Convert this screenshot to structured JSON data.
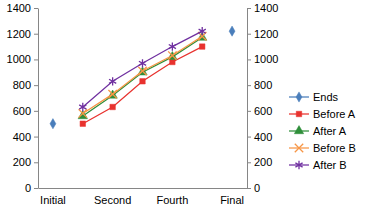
{
  "chart_data": {
    "type": "line",
    "categories": [
      "Initial",
      null,
      "Second",
      null,
      "Fourth",
      null,
      "Final"
    ],
    "ylim": [
      0,
      1400
    ],
    "yticks": [
      0,
      200,
      400,
      600,
      800,
      1000,
      1200,
      1400
    ],
    "y2lim": [
      0,
      1400
    ],
    "y2ticks": [
      0,
      200,
      400,
      600,
      800,
      1000,
      1200,
      1400
    ],
    "grid": false,
    "legend": "right",
    "series": [
      {
        "name": "Ends",
        "color": "#4a7ebb",
        "marker": "diamond",
        "line_style": "none",
        "axis": "y2",
        "values": [
          500,
          null,
          null,
          null,
          null,
          null,
          1220
        ]
      },
      {
        "name": "Before A",
        "color": "#e8322e",
        "marker": "square",
        "line_style": "solid",
        "values": [
          null,
          500,
          630,
          830,
          980,
          1100,
          null
        ]
      },
      {
        "name": "After A",
        "color": "#2f8f3a",
        "marker": "triangle",
        "line_style": "solid",
        "values": [
          null,
          560,
          720,
          900,
          1020,
          1170,
          null
        ]
      },
      {
        "name": "Before B",
        "color": "#f79646",
        "marker": "x",
        "line_style": "solid",
        "values": [
          null,
          580,
          730,
          910,
          1030,
          1180,
          null
        ]
      },
      {
        "name": "After B",
        "color": "#7030a0",
        "marker": "asterisk",
        "line_style": "solid",
        "values": [
          null,
          630,
          830,
          970,
          1100,
          1220,
          null
        ]
      }
    ]
  }
}
